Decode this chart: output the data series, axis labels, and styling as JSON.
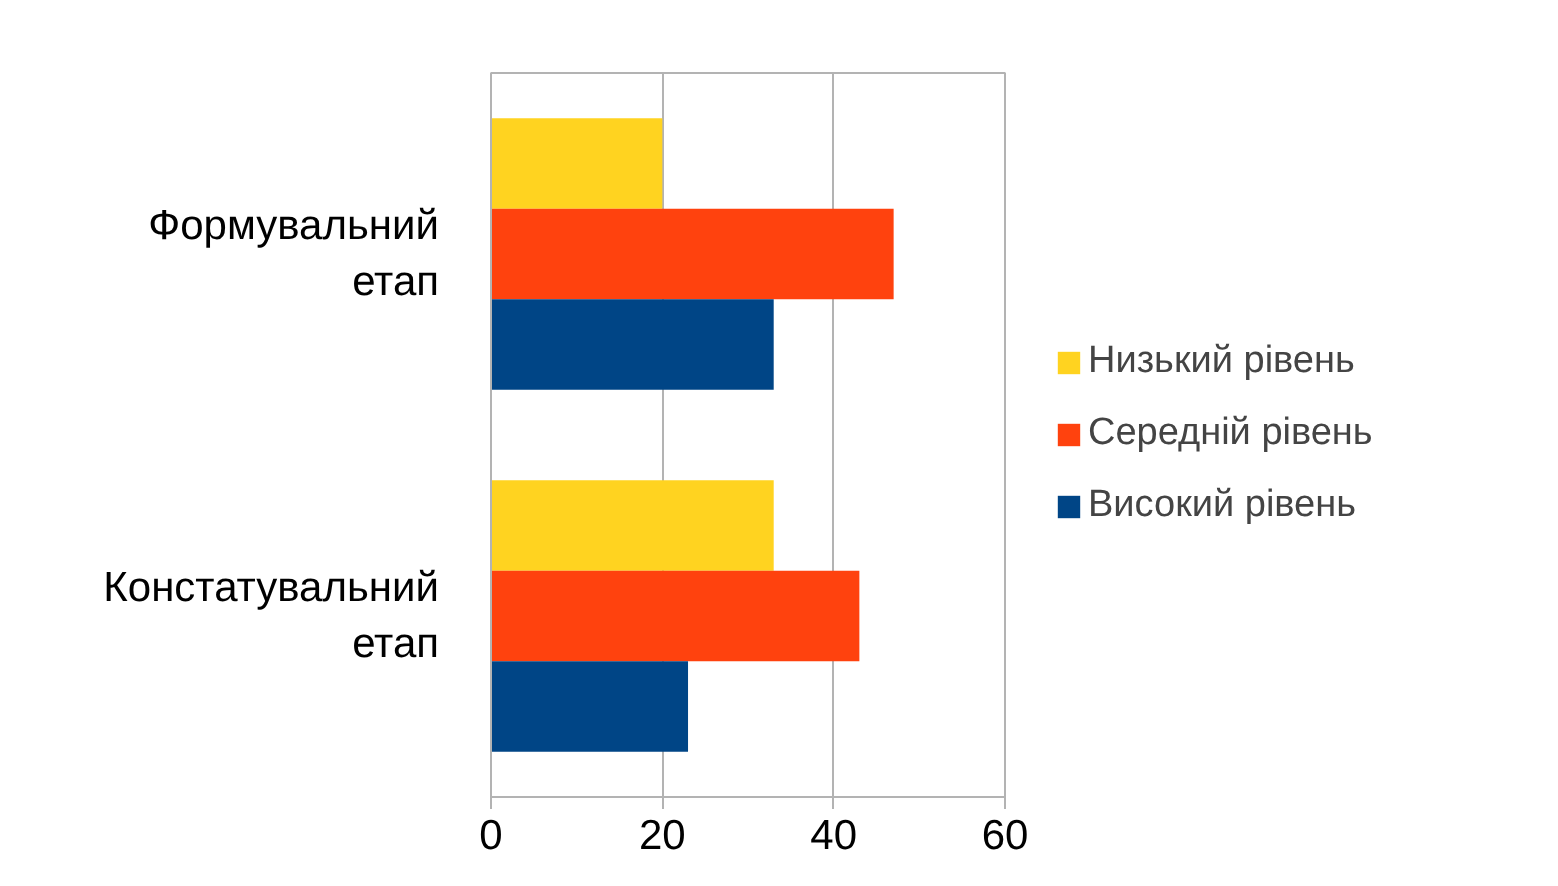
{
  "chart_data": {
    "type": "bar",
    "orientation": "horizontal",
    "categories": [
      "Формувальний етап",
      "Констатувальний етап"
    ],
    "series": [
      {
        "name": "Низький рівень",
        "color": "#ffd320",
        "values": [
          20,
          33
        ]
      },
      {
        "name": "Середній рівень",
        "color": "#ff420e",
        "values": [
          47,
          43
        ]
      },
      {
        "name": "Високий рівень",
        "color": "#004586",
        "values": [
          33,
          23
        ]
      }
    ],
    "xlim": [
      0,
      60
    ],
    "xticks": [
      0,
      20,
      40,
      60
    ],
    "grid": "x",
    "legend": "right"
  }
}
